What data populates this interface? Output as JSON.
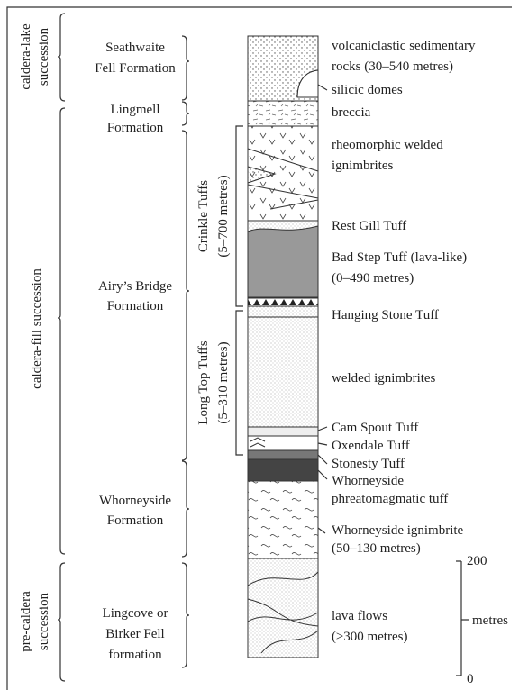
{
  "successions": [
    {
      "lines": [
        "caldera-lake",
        "succession"
      ]
    },
    {
      "lines": [
        "caldera-fill succession"
      ]
    },
    {
      "lines": [
        "pre-caldera",
        "succession"
      ]
    }
  ],
  "formations": [
    {
      "lines": [
        "Seathwaite",
        "Fell Formation"
      ]
    },
    {
      "lines": [
        "Lingmell",
        "Formation"
      ]
    },
    {
      "lines": [
        "Airy’s Bridge",
        "Formation"
      ]
    },
    {
      "lines": [
        "Whorneyside",
        "Formation"
      ]
    },
    {
      "lines": [
        "Lingcove or",
        "Birker Fell",
        "formation"
      ]
    }
  ],
  "groups": [
    {
      "lines": [
        "Crinkle Tuffs",
        "(5–700 metres)"
      ]
    },
    {
      "lines": [
        "Long Top Tuffs",
        "(5–310 metres)"
      ]
    }
  ],
  "units": [
    {
      "lines": [
        "volcaniclastic sedimentary",
        "rocks (30–540 metres)"
      ]
    },
    {
      "lines": [
        "silicic domes"
      ]
    },
    {
      "lines": [
        "breccia"
      ]
    },
    {
      "lines": [
        "rheomorphic welded",
        "ignimbrites"
      ]
    },
    {
      "lines": [
        "Rest Gill Tuff"
      ]
    },
    {
      "lines": [
        "Bad Step Tuff (lava-like)",
        "(0–490 metres)"
      ]
    },
    {
      "lines": [
        "Hanging Stone Tuff"
      ]
    },
    {
      "lines": [
        "welded ignimbrites"
      ]
    },
    {
      "lines": [
        "Cam Spout Tuff"
      ]
    },
    {
      "lines": [
        "Oxendale Tuff"
      ]
    },
    {
      "lines": [
        "Stonesty Tuff"
      ]
    },
    {
      "lines": [
        "Whorneyside",
        "phreatomagmatic tuff"
      ]
    },
    {
      "lines": [
        "Whorneyside ignimbrite",
        "(50–130 metres)"
      ]
    },
    {
      "lines": [
        "lava flows",
        "(≥300 metres)"
      ]
    }
  ],
  "scale": {
    "top": 200,
    "unit": "metres",
    "bottom": 0
  }
}
